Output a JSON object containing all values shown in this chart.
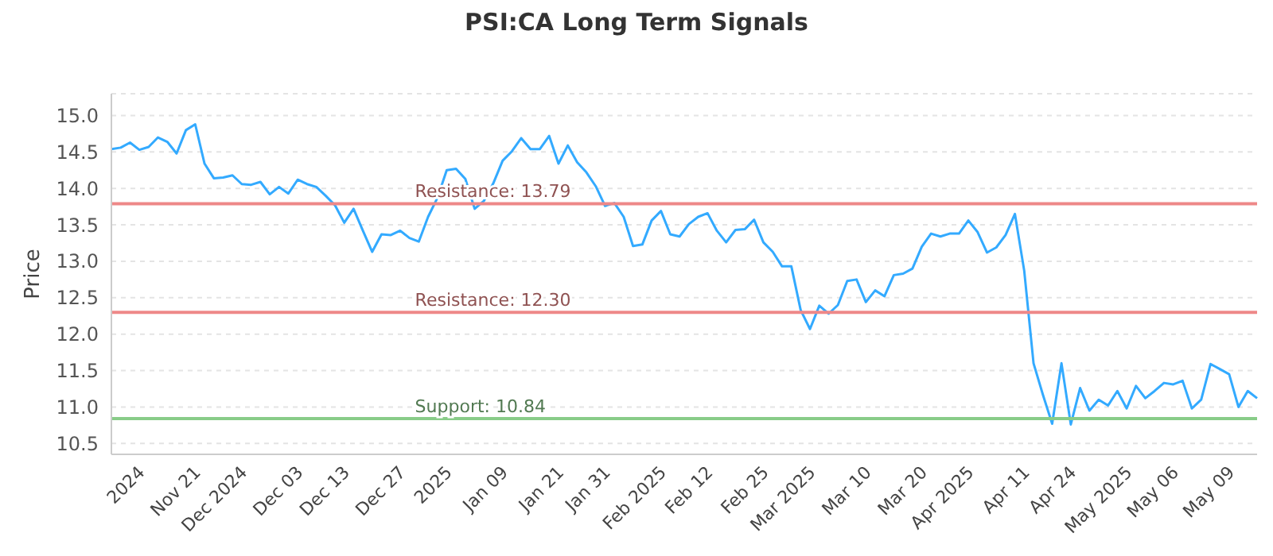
{
  "chart_data": {
    "type": "line",
    "title": "PSI:CA Long Term Signals",
    "ylabel": "Price",
    "categories": [
      null,
      null,
      null,
      "2024",
      null,
      null,
      null,
      null,
      null,
      "Nov 21",
      null,
      null,
      null,
      null,
      "Dec 2024",
      null,
      null,
      null,
      null,
      null,
      "Dec 03",
      null,
      null,
      null,
      null,
      "Dec 13",
      null,
      null,
      null,
      null,
      null,
      "Dec 27",
      null,
      null,
      null,
      null,
      "2025",
      null,
      null,
      null,
      null,
      null,
      "Jan 09",
      null,
      null,
      null,
      null,
      null,
      "Jan 21",
      null,
      null,
      null,
      null,
      "Jan 31",
      null,
      null,
      null,
      null,
      null,
      "Feb 2025",
      null,
      null,
      null,
      null,
      "Feb 12",
      null,
      null,
      null,
      null,
      null,
      "Feb 25",
      null,
      null,
      null,
      null,
      "Mar 2025",
      null,
      null,
      null,
      null,
      null,
      "Mar 10",
      null,
      null,
      null,
      null,
      null,
      "Mar 20",
      null,
      null,
      null,
      null,
      "Apr 2025",
      null,
      null,
      null,
      null,
      null,
      "Apr 11",
      null,
      null,
      null,
      null,
      "Apr 24",
      null,
      null,
      null,
      null,
      null,
      "May 2025",
      null,
      null,
      null,
      null,
      "May 06",
      null,
      null,
      null,
      null,
      null,
      "May 09",
      null,
      null,
      null
    ],
    "series": [
      {
        "color": "#33aaff",
        "values": [
          14.54,
          14.56,
          14.63,
          14.53,
          14.57,
          14.7,
          14.64,
          14.48,
          14.8,
          14.88,
          14.34,
          14.14,
          14.15,
          14.18,
          14.06,
          14.05,
          14.09,
          13.92,
          14.02,
          13.93,
          14.12,
          14.06,
          14.02,
          13.9,
          13.77,
          13.53,
          13.72,
          13.42,
          13.13,
          13.37,
          13.36,
          13.42,
          13.32,
          13.27,
          13.61,
          13.87,
          14.25,
          14.27,
          14.13,
          13.72,
          13.83,
          14.07,
          14.38,
          14.51,
          14.69,
          14.54,
          14.54,
          14.72,
          14.34,
          14.59,
          14.36,
          14.22,
          14.03,
          13.76,
          13.8,
          13.61,
          13.21,
          13.23,
          13.56,
          13.69,
          13.37,
          13.34,
          13.51,
          13.61,
          13.66,
          13.42,
          13.26,
          13.43,
          13.44,
          13.57,
          13.26,
          13.13,
          12.93,
          12.93,
          12.33,
          12.07,
          12.39,
          12.28,
          12.4,
          12.73,
          12.75,
          12.44,
          12.6,
          12.52,
          12.81,
          12.83,
          12.9,
          13.2,
          13.38,
          13.34,
          13.38,
          13.38,
          13.56,
          13.4,
          13.12,
          13.19,
          13.36,
          13.65,
          12.87,
          11.6,
          11.17,
          10.77,
          11.6,
          10.76,
          11.26,
          10.95,
          11.1,
          11.02,
          11.22,
          10.98,
          11.29,
          11.12,
          11.22,
          11.33,
          11.31,
          11.36,
          10.98,
          11.1,
          11.59,
          11.52,
          11.45,
          11.0,
          11.22,
          11.12
        ]
      }
    ],
    "ylim": [
      10.35,
      15.3
    ],
    "yticks": [
      {
        "value": 10.5,
        "label": "10.5"
      },
      {
        "value": 11,
        "label": "11.0"
      },
      {
        "value": 11.5,
        "label": "11.5"
      },
      {
        "value": 12,
        "label": "12.0"
      },
      {
        "value": 12.5,
        "label": "12.5"
      },
      {
        "value": 13,
        "label": "13.0"
      },
      {
        "value": 13.5,
        "label": "13.5"
      },
      {
        "value": 14,
        "label": "14.0"
      },
      {
        "value": 14.5,
        "label": "14.5"
      },
      {
        "value": 15,
        "label": "15.0"
      }
    ],
    "grid": "y",
    "marker": "none",
    "line_style": "solid",
    "ref_lines": [
      {
        "axis": "y",
        "value": 13.79,
        "label": "Resistance: 13.79",
        "color": "#ee8888"
      },
      {
        "axis": "y",
        "value": 12.3,
        "label": "Resistance: 12.30",
        "color": "#ee8888"
      },
      {
        "axis": "y",
        "value": 10.84,
        "label": "Support: 10.84",
        "color": "#88cc88"
      }
    ]
  }
}
